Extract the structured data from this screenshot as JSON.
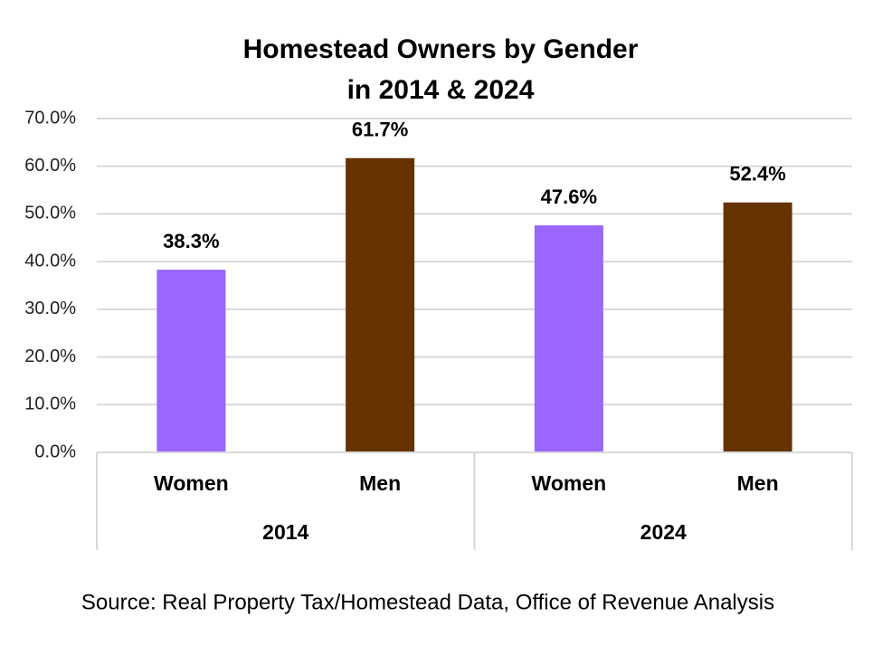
{
  "chart_data": {
    "type": "bar",
    "title": [
      "Homestead Owners by Gender",
      "in 2014 & 2024"
    ],
    "categories": [
      "Women",
      "Men",
      "Women",
      "Men"
    ],
    "groups": [
      "2014",
      "2024"
    ],
    "values": [
      38.3,
      61.7,
      47.6,
      52.4
    ],
    "value_labels": [
      "38.3%",
      "61.7%",
      "47.6%",
      "52.4%"
    ],
    "colors": [
      "#9966ff",
      "#663300",
      "#9966ff",
      "#663300"
    ],
    "ylim": [
      0,
      70
    ],
    "yticks": [
      {
        "value": 0,
        "label": "0.0%"
      },
      {
        "value": 10,
        "label": "10.0%"
      },
      {
        "value": 20,
        "label": "20.0%"
      },
      {
        "value": 30,
        "label": "30.0%"
      },
      {
        "value": 40,
        "label": "40.0%"
      },
      {
        "value": 50,
        "label": "50.0%"
      },
      {
        "value": 60,
        "label": "60.0%"
      },
      {
        "value": 70,
        "label": "70.0%"
      }
    ],
    "grid": true,
    "source": "Source: Real Property Tax/Homestead Data, Office of Revenue Analysis"
  }
}
